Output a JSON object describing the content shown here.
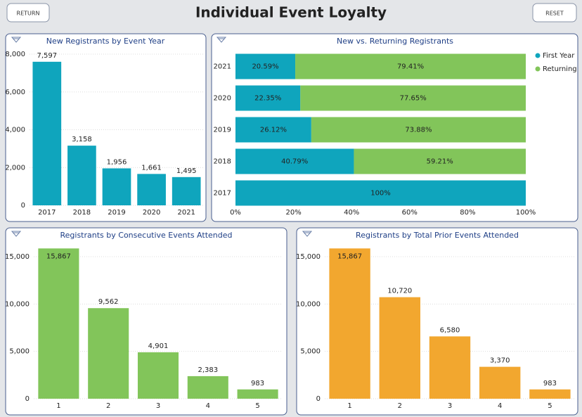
{
  "header": {
    "title": "Individual Event Loyalty",
    "return_button": "RETURN",
    "reset_button": "RESET"
  },
  "chart_data": [
    {
      "type": "bar",
      "title": "New Registrants by Event Year",
      "categories": [
        "2017",
        "2018",
        "2019",
        "2020",
        "2021"
      ],
      "values": [
        7597,
        3158,
        1956,
        1661,
        1495
      ],
      "value_labels": [
        "7,597",
        "3,158",
        "1,956",
        "1,661",
        "1,495"
      ],
      "color": "#0fa5bd",
      "ylim": [
        0,
        8000
      ],
      "yticks": [
        0,
        {
          "value": 2000,
          "label": "2,000"
        },
        {
          "value": 4000,
          "label": "4,000"
        },
        {
          "value": 6000,
          "label": "6,000"
        },
        {
          "value": 8000,
          "label": "8,000"
        }
      ],
      "grid": true
    },
    {
      "type": "stacked_hbar",
      "title": "New vs. Returning Registrants",
      "categories": [
        "2021",
        "2020",
        "2019",
        "2018",
        "2017"
      ],
      "series": [
        {
          "name": "First Year",
          "color": "#0fa5bd",
          "values": [
            20.59,
            22.35,
            26.12,
            40.79,
            100
          ],
          "value_labels": [
            "20.59%",
            "22.35%",
            "26.12%",
            "40.79%",
            "100%"
          ]
        },
        {
          "name": "Returning",
          "color": "#82c55a",
          "values": [
            79.41,
            77.65,
            73.88,
            59.21,
            null
          ],
          "value_labels": [
            "79.41%",
            "77.65%",
            "73.88%",
            "59.21%",
            null
          ]
        }
      ],
      "xlim": [
        0,
        100
      ],
      "xticks": [
        {
          "value": 0,
          "label": "0%"
        },
        {
          "value": 20,
          "label": "20%"
        },
        {
          "value": 40,
          "label": "40%"
        },
        {
          "value": 60,
          "label": "60%"
        },
        {
          "value": 80,
          "label": "80%"
        },
        {
          "value": 100,
          "label": "100%"
        }
      ],
      "legend": "top-right"
    },
    {
      "type": "bar",
      "title": "Registrants by Consecutive Events Attended",
      "categories": [
        "1",
        "2",
        "3",
        "4",
        "5"
      ],
      "values": [
        15867,
        9562,
        4901,
        2383,
        983
      ],
      "value_labels": [
        "15,867",
        "9,562",
        "4,901",
        "2,383",
        "983"
      ],
      "color": "#82c55a",
      "ylim": [
        0,
        16000
      ],
      "yticks": [
        0,
        {
          "value": 5000,
          "label": "5,000"
        },
        {
          "value": 10000,
          "label": "10,000"
        },
        {
          "value": 15000,
          "label": "15,000"
        }
      ],
      "grid": true
    },
    {
      "type": "bar",
      "title": "Registrants by Total Prior Events Attended",
      "categories": [
        "1",
        "2",
        "3",
        "4",
        "5"
      ],
      "values": [
        15867,
        10720,
        6580,
        3370,
        983
      ],
      "value_labels": [
        "15,867",
        "10,720",
        "6,580",
        "3,370",
        "983"
      ],
      "color": "#f2a72f",
      "ylim": [
        0,
        16000
      ],
      "yticks": [
        0,
        {
          "value": 5000,
          "label": "5,000"
        },
        {
          "value": 10000,
          "label": "10,000"
        },
        {
          "value": 15000,
          "label": "15,000"
        }
      ],
      "grid": true
    }
  ]
}
